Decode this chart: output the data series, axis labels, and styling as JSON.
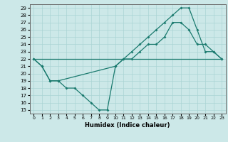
{
  "xlabel": "Humidex (Indice chaleur)",
  "background_color": "#cce8e8",
  "line_color": "#1a7a6e",
  "xlim": [
    -0.5,
    23.5
  ],
  "ylim": [
    14.5,
    29.5
  ],
  "xticks": [
    0,
    1,
    2,
    3,
    4,
    5,
    6,
    7,
    8,
    9,
    10,
    11,
    12,
    13,
    14,
    15,
    16,
    17,
    18,
    19,
    20,
    21,
    22,
    23
  ],
  "yticks": [
    15,
    16,
    17,
    18,
    19,
    20,
    21,
    22,
    23,
    24,
    25,
    26,
    27,
    28,
    29
  ],
  "line1_x": [
    0,
    23
  ],
  "line1_y": [
    22,
    22
  ],
  "line2_x": [
    0,
    1,
    2,
    3,
    10,
    11,
    12,
    13,
    14,
    15,
    16,
    17,
    18,
    19,
    20,
    21,
    22,
    23
  ],
  "line2_y": [
    22,
    21,
    19,
    19,
    21,
    22,
    23,
    24,
    25,
    26,
    27,
    28,
    29,
    29,
    26,
    23,
    23,
    22
  ],
  "line3_x": [
    0,
    1,
    2,
    3,
    4,
    5,
    6,
    7,
    8,
    9,
    10,
    11,
    12,
    13,
    14,
    15,
    16,
    17,
    18,
    19,
    20,
    21,
    22,
    23
  ],
  "line3_y": [
    22,
    21,
    19,
    19,
    18,
    18,
    17,
    16,
    15,
    15,
    21,
    22,
    22,
    23,
    24,
    24,
    25,
    27,
    27,
    26,
    24,
    24,
    23,
    22
  ]
}
